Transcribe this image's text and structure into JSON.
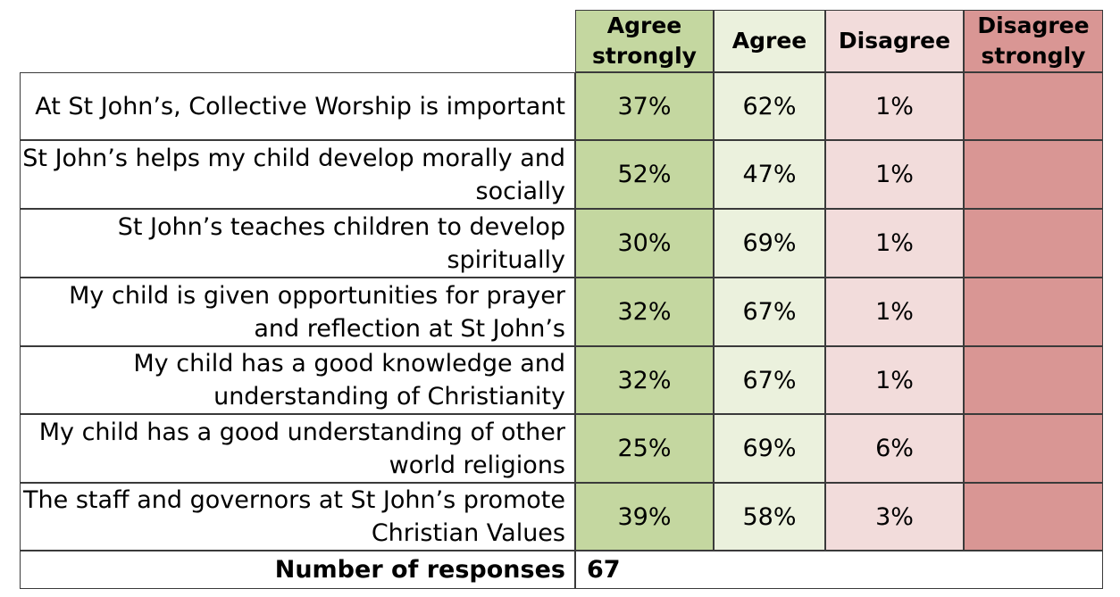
{
  "chart_data": {
    "type": "table",
    "columns": [
      "Agree strongly",
      "Agree",
      "Disagree",
      "Disagree strongly"
    ],
    "column_colors": [
      "#c4d7a0",
      "#ebf1dd",
      "#f2dcdb",
      "#d99694"
    ],
    "rows": [
      {
        "label": "At St John’s, Collective Worship is important",
        "values": [
          "37%",
          "62%",
          "1%",
          ""
        ]
      },
      {
        "label": "St John’s helps my child develop morally and socially",
        "values": [
          "52%",
          "47%",
          "1%",
          ""
        ]
      },
      {
        "label": "St John’s teaches children to develop spiritually",
        "values": [
          "30%",
          "69%",
          "1%",
          ""
        ]
      },
      {
        "label": "My child is given opportunities for prayer and reflection at St John’s",
        "values": [
          "32%",
          "67%",
          "1%",
          ""
        ]
      },
      {
        "label": "My child has a good knowledge and understanding of Christianity",
        "values": [
          "32%",
          "67%",
          "1%",
          ""
        ]
      },
      {
        "label": "My child has a good understanding of other world religions",
        "values": [
          "25%",
          "69%",
          "6%",
          ""
        ]
      },
      {
        "label": "The staff and governors at St John’s promote Christian Values",
        "values": [
          "39%",
          "58%",
          "3%",
          ""
        ]
      }
    ],
    "footer": {
      "label": "Number of responses",
      "value": "67"
    }
  }
}
